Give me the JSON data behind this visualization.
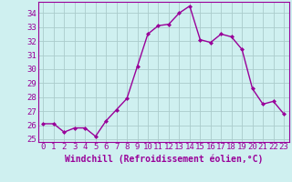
{
  "x": [
    0,
    1,
    2,
    3,
    4,
    5,
    6,
    7,
    8,
    9,
    10,
    11,
    12,
    13,
    14,
    15,
    16,
    17,
    18,
    19,
    20,
    21,
    22,
    23
  ],
  "y": [
    26.1,
    26.1,
    25.5,
    25.8,
    25.8,
    25.2,
    26.3,
    27.1,
    27.9,
    30.2,
    32.5,
    33.1,
    33.2,
    34.0,
    34.5,
    32.1,
    31.9,
    32.5,
    32.3,
    31.4,
    28.6,
    27.5,
    27.7,
    26.8
  ],
  "line_color": "#990099",
  "marker": "D",
  "marker_size": 2.0,
  "bg_color": "#cff0f0",
  "grid_color": "#aacccc",
  "xlabel": "Windchill (Refroidissement éolien,°C)",
  "xlabel_color": "#990099",
  "tick_color": "#990099",
  "spine_color": "#990099",
  "ylim": [
    24.8,
    34.8
  ],
  "xlim": [
    -0.5,
    23.5
  ],
  "yticks": [
    25,
    26,
    27,
    28,
    29,
    30,
    31,
    32,
    33,
    34
  ],
  "xticks": [
    0,
    1,
    2,
    3,
    4,
    5,
    6,
    7,
    8,
    9,
    10,
    11,
    12,
    13,
    14,
    15,
    16,
    17,
    18,
    19,
    20,
    21,
    22,
    23
  ],
  "xtick_labels": [
    "0",
    "1",
    "2",
    "3",
    "4",
    "5",
    "6",
    "7",
    "8",
    "9",
    "10",
    "11",
    "12",
    "13",
    "14",
    "15",
    "16",
    "17",
    "18",
    "19",
    "20",
    "21",
    "22",
    "23"
  ],
  "tick_fontsize": 6.5,
  "xlabel_fontsize": 7.0,
  "line_width": 1.0
}
